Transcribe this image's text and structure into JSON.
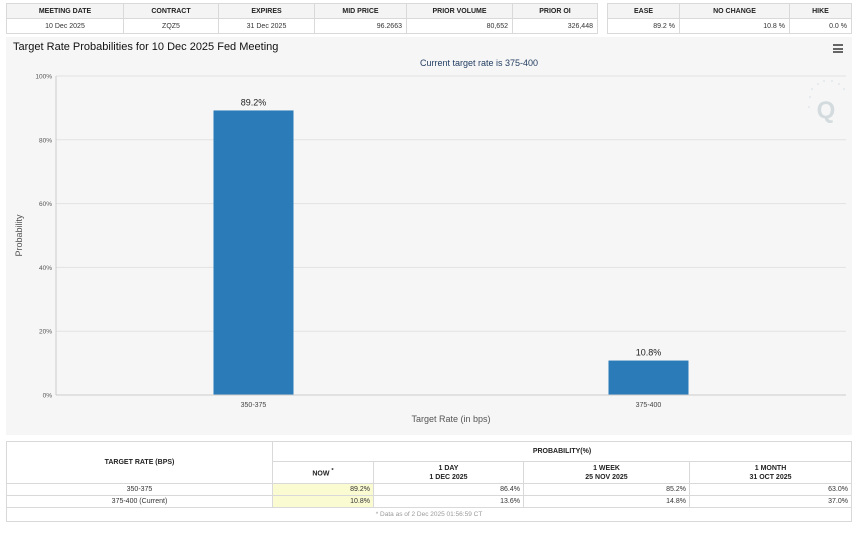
{
  "top_table": {
    "headers": [
      "MEETING DATE",
      "CONTRACT",
      "EXPIRES",
      "MID PRICE",
      "PRIOR VOLUME",
      "PRIOR OI"
    ],
    "row": [
      "10 Dec 2025",
      "ZQZ5",
      "31 Dec 2025",
      "96.2663",
      "80,652",
      "326,448"
    ]
  },
  "side_table": {
    "headers": [
      "EASE",
      "NO CHANGE",
      "HIKE"
    ],
    "row": [
      "89.2 %",
      "10.8 %",
      "0.0 %"
    ]
  },
  "chart_panel": {
    "title": "Target Rate Probabilities for 10 Dec 2025 Fed Meeting",
    "menu_icon": "hamburger-menu-icon",
    "watermark_icon": "cme-q-logo"
  },
  "chart_data": {
    "type": "bar",
    "title": "Target Rate Probabilities for 10 Dec 2025 Fed Meeting",
    "subtitle": "Current target rate is 375-400",
    "categories": [
      "350-375",
      "375-400"
    ],
    "values": [
      89.2,
      10.8
    ],
    "data_labels": [
      "89.2%",
      "10.8%"
    ],
    "xlabel": "Target Rate (in bps)",
    "ylabel": "Probability",
    "ylim": [
      0,
      100
    ],
    "yticks": [
      "0%",
      "20%",
      "40%",
      "60%",
      "80%",
      "100%"
    ],
    "ytick_values": [
      0,
      20,
      40,
      60,
      80,
      100
    ],
    "grid": true,
    "bar_color": "#2b7bb9"
  },
  "prob_table": {
    "target_rate_header": "TARGET RATE (BPS)",
    "probability_header": "PROBABILITY(%)",
    "columns": [
      {
        "label": "NOW",
        "sup": "*",
        "date": ""
      },
      {
        "label": "1 DAY",
        "sup": "",
        "date": "1 DEC 2025"
      },
      {
        "label": "1 WEEK",
        "sup": "",
        "date": "25 NOV 2025"
      },
      {
        "label": "1 MONTH",
        "sup": "",
        "date": "31 OCT 2025"
      }
    ],
    "rows": [
      {
        "rate": "350-375",
        "values": [
          "89.2%",
          "86.4%",
          "85.2%",
          "63.0%"
        ]
      },
      {
        "rate": "375-400 (Current)",
        "values": [
          "10.8%",
          "13.6%",
          "14.8%",
          "37.0%"
        ]
      }
    ],
    "footnote": "* Data as of 2 Dec 2025 01:56:59 CT"
  },
  "colors": {
    "bar": "#2b7bb9",
    "panel_background": "#f6f6f6",
    "now_highlight": "#fbfbd2",
    "subtitle": "#1f3a5f"
  }
}
